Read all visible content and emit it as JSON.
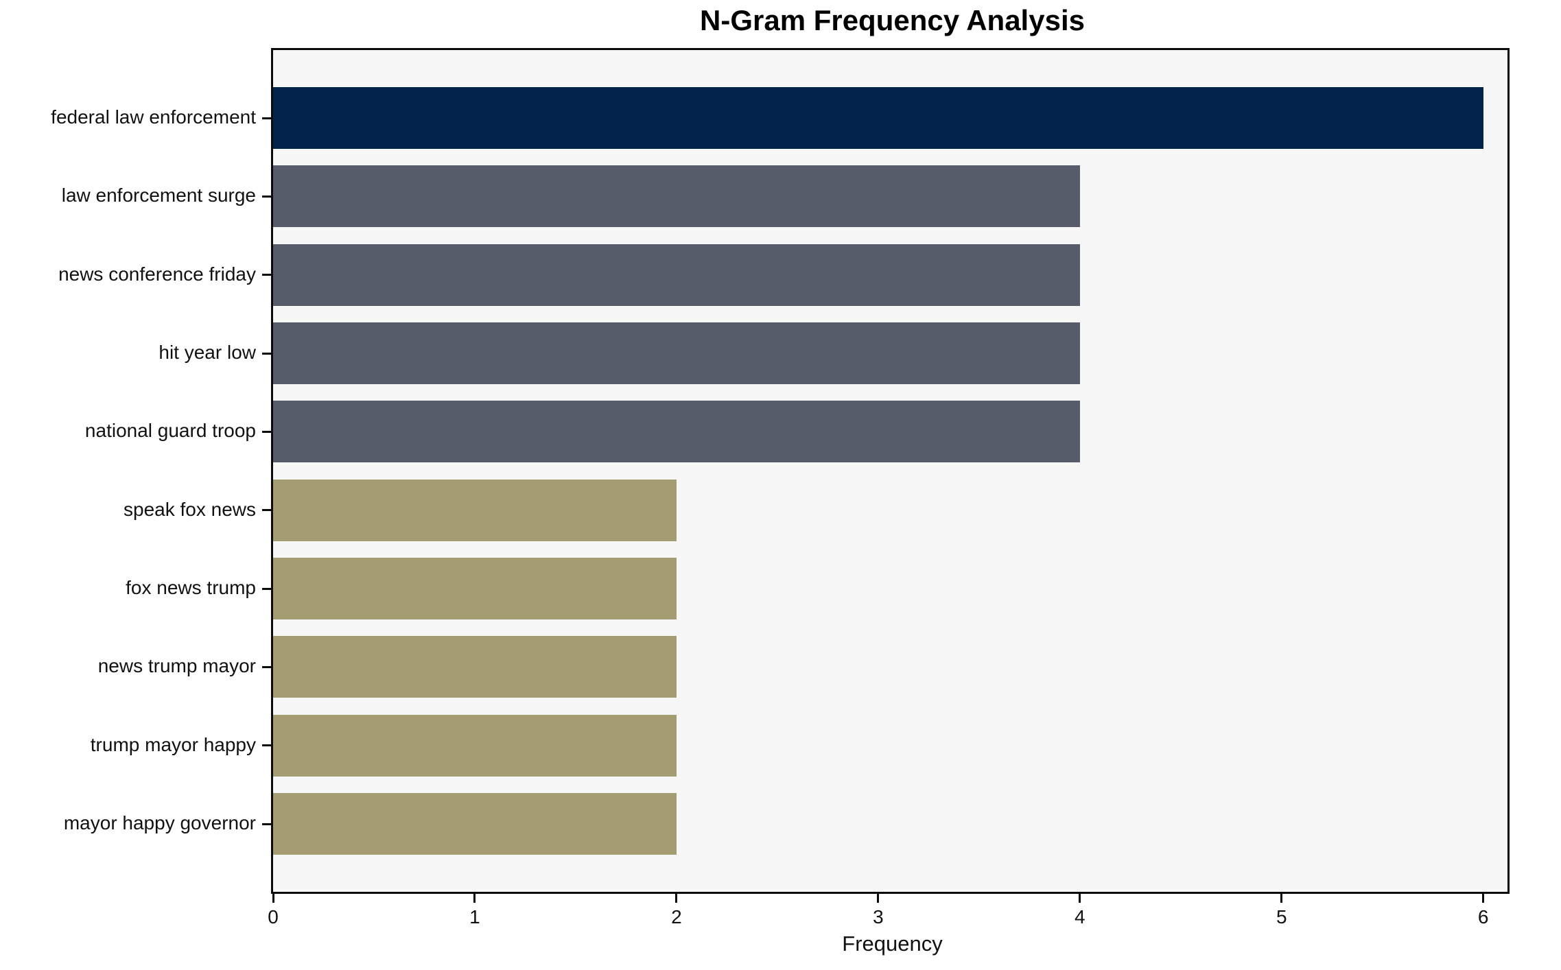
{
  "title": "N-Gram Frequency Analysis",
  "chart_data": {
    "type": "bar",
    "orientation": "horizontal",
    "title": "N-Gram Frequency Analysis",
    "categories": [
      "federal law enforcement",
      "law enforcement surge",
      "news conference friday",
      "hit year low",
      "national guard troop",
      "speak fox news",
      "fox news trump",
      "news trump mayor",
      "trump mayor happy",
      "mayor happy governor"
    ],
    "values": [
      6,
      4,
      4,
      4,
      4,
      2,
      2,
      2,
      2,
      2
    ],
    "bar_colors": [
      "#02234c",
      "#575c6b",
      "#575c6b",
      "#575c6b",
      "#575c6b",
      "#a49c72",
      "#a49c72",
      "#a49c72",
      "#a49c72",
      "#a49c72"
    ],
    "xlabel": "Frequency",
    "ylabel": "",
    "xlim": [
      0,
      6.12
    ],
    "x_ticks": [
      0,
      1,
      2,
      3,
      4,
      5,
      6
    ],
    "grid": false,
    "legend": null,
    "plot_bg": "#f7f7f8",
    "figure_bg": "#ffffff",
    "axis_color": "#0a0a0a"
  }
}
